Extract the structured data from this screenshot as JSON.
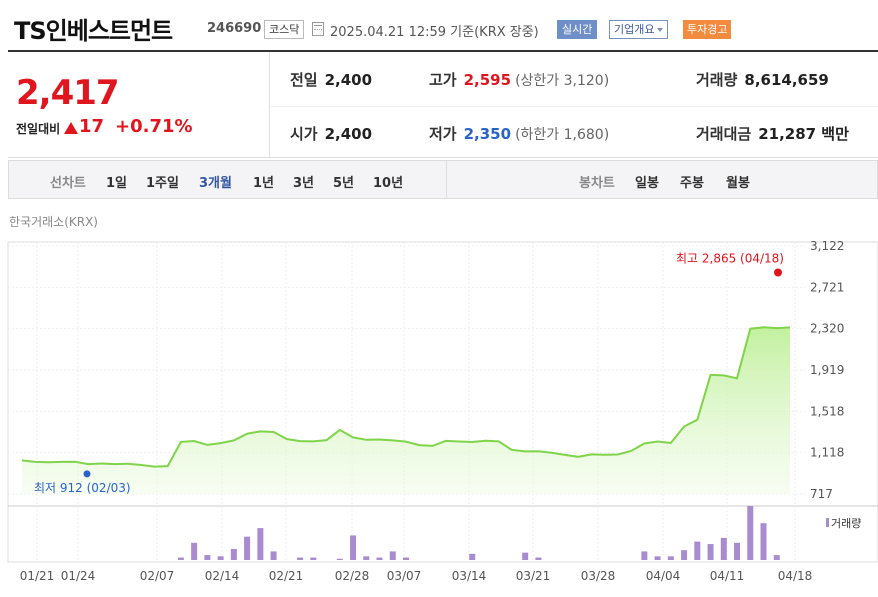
{
  "header": {
    "title": "TS인베스트먼트",
    "code": "246690",
    "market": "코스닥",
    "datetime": "2025.04.21 12:59",
    "basis": "기준(KRX 장중)",
    "realtime_label": "실시간",
    "company_label": "기업개요",
    "warning_label": "투자경고"
  },
  "quote": {
    "price": "2,417",
    "change_label": "전일대비",
    "change_value": "17",
    "change_pct": "+0.71%",
    "up_color": "#e0151d",
    "down_color": "#2a63c8"
  },
  "stats": {
    "prev_label": "전일",
    "prev": "2,400",
    "open_label": "시가",
    "open": "2,400",
    "high_label": "고가",
    "high": "2,595",
    "upper_limit": "(상한가 3,120)",
    "low_label": "저가",
    "low": "2,350",
    "lower_limit": "(하한가 1,680)",
    "volume_label": "거래량",
    "volume": "8,614,659",
    "amount_label": "거래대금",
    "amount": "21,287 백만"
  },
  "tabs": {
    "line_chart": "선차트",
    "periods": [
      "1일",
      "1주일",
      "3개월",
      "1년",
      "3년",
      "5년",
      "10년"
    ],
    "active_period": "3개월",
    "candle_chart": "봉차트",
    "candles": [
      "일봉",
      "주봉",
      "월봉"
    ]
  },
  "exchange_label": "한국거래소(KRX)",
  "chart_data": {
    "type": "area",
    "title": "",
    "y_ticks": [
      "3,122",
      "2,721",
      "2,320",
      "1,919",
      "1,518",
      "1,118",
      "717"
    ],
    "x_ticks": [
      "01/21",
      "01/24",
      "02/07",
      "02/14",
      "02/21",
      "02/28",
      "03/07",
      "03/14",
      "03/21",
      "03/28",
      "04/04",
      "04/11",
      "04/18"
    ],
    "ylim": [
      717,
      3122
    ],
    "max_annotation": "최고 2,865 (04/18)",
    "min_annotation": "최저 912 (02/03)",
    "volume_label": "거래량",
    "line_color": "#7fd44a",
    "volume_color": "#a98bd0",
    "price_series": [
      1043,
      1028,
      1025,
      1028,
      1029,
      1007,
      1013,
      1007,
      1011,
      998,
      983,
      988,
      1222,
      1231,
      1193,
      1211,
      1237,
      1302,
      1324,
      1318,
      1250,
      1230,
      1227,
      1240,
      1339,
      1266,
      1243,
      1246,
      1237,
      1225,
      1191,
      1183,
      1232,
      1226,
      1221,
      1234,
      1227,
      1145,
      1130,
      1131,
      1117,
      1096,
      1078,
      1101,
      1097,
      1100,
      1134,
      1207,
      1226,
      1212,
      1372,
      1437,
      1872,
      1867,
      1839,
      2320,
      2334,
      2326,
      2333
    ],
    "volume_series": [
      0,
      0,
      0,
      0,
      0,
      0,
      0,
      0,
      0,
      0,
      0,
      0,
      2,
      14,
      4,
      3,
      9,
      19,
      26,
      7,
      0,
      2,
      2,
      0,
      1,
      20,
      3,
      2,
      7,
      2,
      0,
      0,
      0,
      0,
      5,
      0,
      0,
      0,
      6,
      2,
      0,
      0,
      0,
      0,
      0,
      0,
      0,
      7,
      3,
      3,
      8,
      15,
      13,
      18,
      14,
      44,
      30,
      4,
      0
    ]
  }
}
